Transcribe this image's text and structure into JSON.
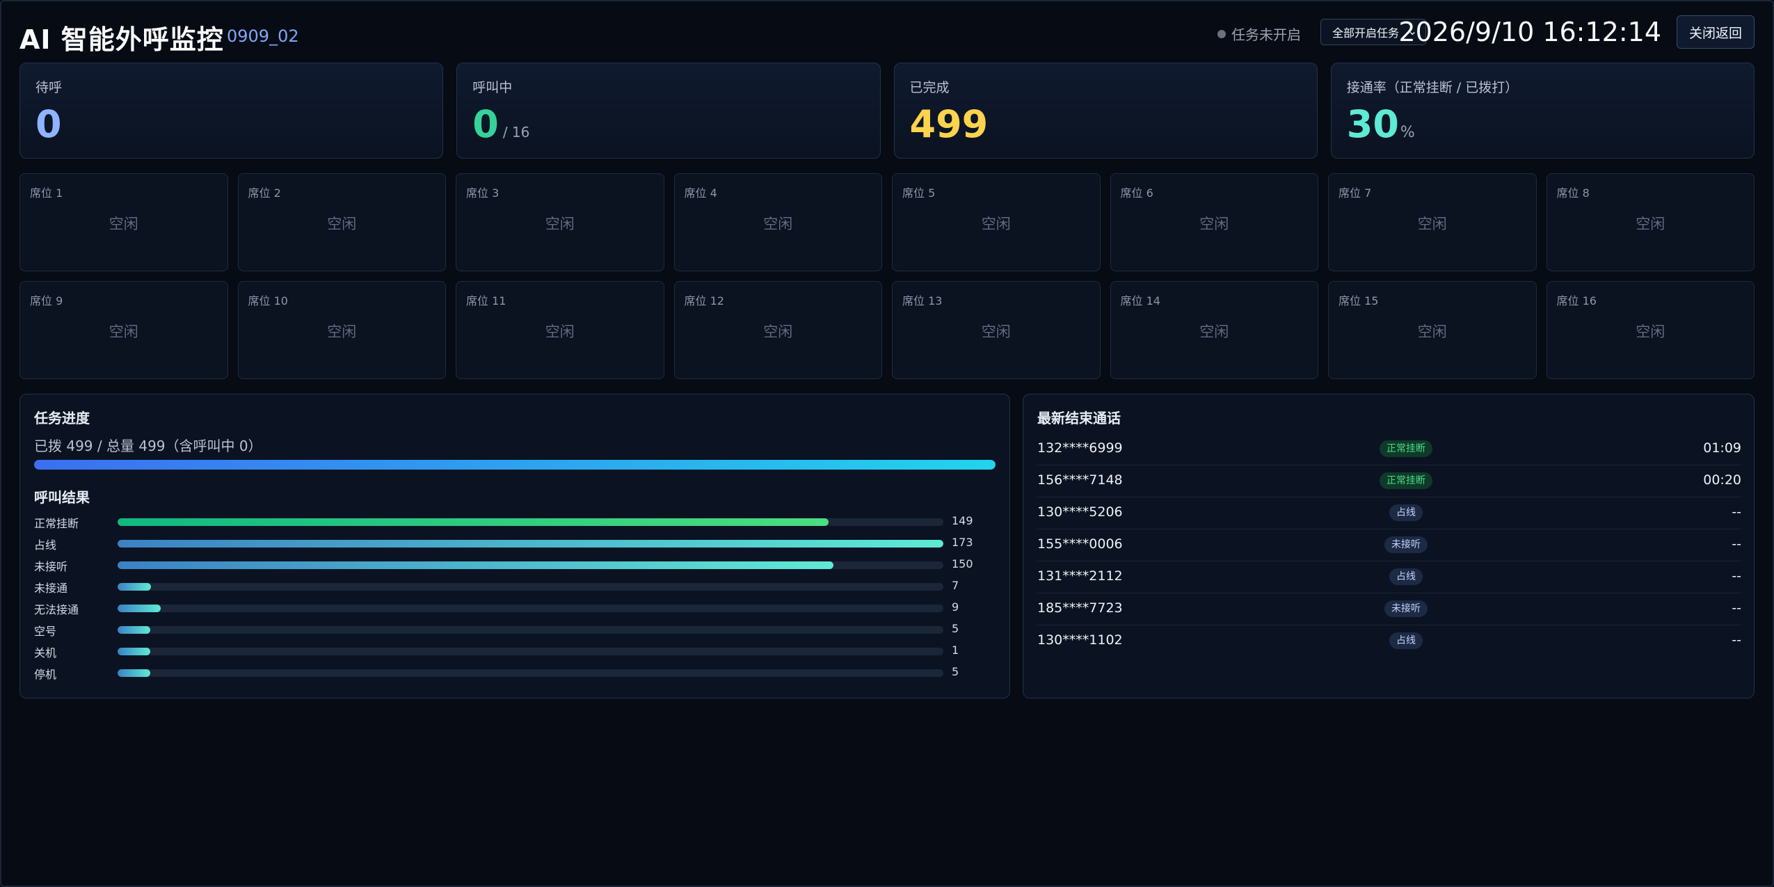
{
  "header": {
    "title": "AI 智能外呼监控",
    "task_id": "0909_02",
    "status_text": "任务未开启",
    "select_value": "全部开启任务",
    "datetime": "2026/9/10 16:12:14",
    "close_label": "关闭返回"
  },
  "stats": {
    "waiting": {
      "label": "待呼",
      "value": "0",
      "color": "#8fb4ff"
    },
    "calling": {
      "label": "呼叫中",
      "value": "0",
      "suffix": "/ 16",
      "color": "#34d399"
    },
    "done": {
      "label": "已完成",
      "value": "499",
      "color": "#fcd34d"
    },
    "rate": {
      "label": "接通率（正常挂断 / 已拨打）",
      "value": "30",
      "suffix": "%",
      "color": "#5eead4"
    }
  },
  "seats": [
    {
      "name": "席位 1",
      "state": "空闲"
    },
    {
      "name": "席位 2",
      "state": "空闲"
    },
    {
      "name": "席位 3",
      "state": "空闲"
    },
    {
      "name": "席位 4",
      "state": "空闲"
    },
    {
      "name": "席位 5",
      "state": "空闲"
    },
    {
      "name": "席位 6",
      "state": "空闲"
    },
    {
      "name": "席位 7",
      "state": "空闲"
    },
    {
      "name": "席位 8",
      "state": "空闲"
    },
    {
      "name": "席位 9",
      "state": "空闲"
    },
    {
      "name": "席位 10",
      "state": "空闲"
    },
    {
      "name": "席位 11",
      "state": "空闲"
    },
    {
      "name": "席位 12",
      "state": "空闲"
    },
    {
      "name": "席位 13",
      "state": "空闲"
    },
    {
      "name": "席位 14",
      "state": "空闲"
    },
    {
      "name": "席位 15",
      "state": "空闲"
    },
    {
      "name": "席位 16",
      "state": "空闲"
    }
  ],
  "progress": {
    "title": "任务进度",
    "text": "已拨 499 / 总量 499（含呼叫中 0）",
    "fraction": 1.0,
    "results_title": "呼叫结果",
    "max_value": 173,
    "results": [
      {
        "label": "正常挂断",
        "value": 149
      },
      {
        "label": "占线",
        "value": 173
      },
      {
        "label": "未接听",
        "value": 150
      },
      {
        "label": "未接通",
        "value": 7
      },
      {
        "label": "无法接通",
        "value": 9
      },
      {
        "label": "空号",
        "value": 5
      },
      {
        "label": "关机",
        "value": 1
      },
      {
        "label": "停机",
        "value": 5
      }
    ]
  },
  "recent_calls": {
    "title": "最新结束通话",
    "items": [
      {
        "number": "132****6999",
        "result": "正常挂断",
        "kind": "ok",
        "duration": "01:09"
      },
      {
        "number": "156****7148",
        "result": "正常挂断",
        "kind": "ok",
        "duration": "00:20"
      },
      {
        "number": "130****5206",
        "result": "占线",
        "kind": "busy",
        "duration": "--"
      },
      {
        "number": "155****0006",
        "result": "未接听",
        "kind": "noans",
        "duration": "--"
      },
      {
        "number": "131****2112",
        "result": "占线",
        "kind": "busy",
        "duration": "--"
      },
      {
        "number": "185****7723",
        "result": "未接听",
        "kind": "noans",
        "duration": "--"
      },
      {
        "number": "130****1102",
        "result": "占线",
        "kind": "busy",
        "duration": "--"
      }
    ]
  }
}
